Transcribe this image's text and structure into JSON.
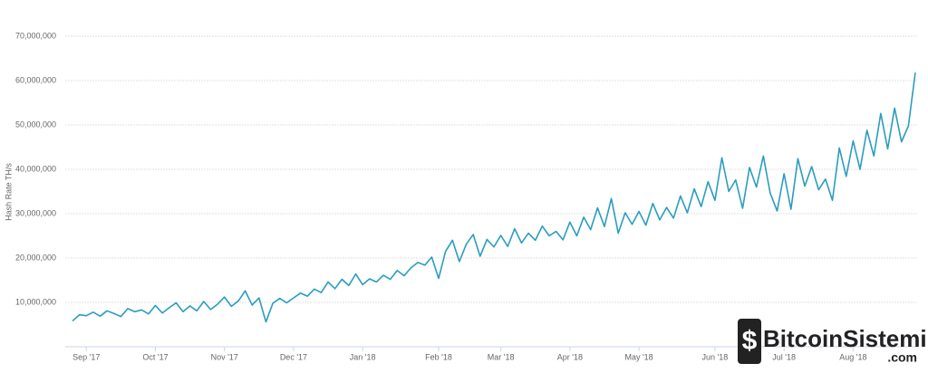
{
  "chart_data": {
    "type": "line",
    "y_label": "Hash Rate TH/s",
    "watermark": "BitcoinSistemi",
    "watermark_sub": ".com",
    "categories": [
      null,
      null,
      "Sep '17",
      null,
      null,
      null,
      null,
      null,
      null,
      null,
      null,
      null,
      "Oct '17",
      null,
      null,
      null,
      null,
      null,
      null,
      null,
      null,
      null,
      "Nov '17",
      null,
      null,
      null,
      null,
      null,
      null,
      null,
      null,
      null,
      "Dec '17",
      null,
      null,
      null,
      null,
      null,
      null,
      null,
      null,
      null,
      "Jan '18",
      null,
      null,
      null,
      null,
      null,
      null,
      null,
      null,
      null,
      null,
      "Feb '18",
      null,
      null,
      null,
      null,
      null,
      null,
      null,
      null,
      "Mar '18",
      null,
      null,
      null,
      null,
      null,
      null,
      null,
      null,
      null,
      "Apr '18",
      null,
      null,
      null,
      null,
      null,
      null,
      null,
      null,
      null,
      "May '18",
      null,
      null,
      null,
      null,
      null,
      null,
      null,
      null,
      null,
      null,
      "Jun '18",
      null,
      null,
      null,
      null,
      null,
      null,
      null,
      null,
      null,
      "Jul '18",
      null,
      null,
      null,
      null,
      null,
      null,
      null,
      null,
      null,
      "Aug '18",
      null,
      null,
      null,
      null,
      null,
      null,
      null,
      null,
      null
    ],
    "series": [
      {
        "name": "Hash Rate",
        "color": "#2a9dbf",
        "values": [
          5800000,
          7200000,
          7000000,
          7800000,
          6900000,
          8100000,
          7500000,
          6800000,
          8600000,
          7900000,
          8300000,
          7400000,
          9300000,
          7600000,
          8800000,
          9900000,
          7900000,
          9200000,
          8100000,
          10200000,
          8400000,
          9600000,
          11200000,
          9100000,
          10300000,
          12600000,
          9400000,
          11000000,
          5600000,
          9800000,
          10900000,
          9900000,
          11000000,
          12100000,
          11400000,
          13000000,
          12200000,
          14600000,
          13100000,
          15200000,
          13800000,
          16400000,
          14000000,
          15300000,
          14600000,
          16100000,
          15200000,
          17200000,
          16000000,
          17800000,
          19000000,
          18400000,
          20200000,
          15400000,
          21500000,
          24000000,
          19200000,
          23100000,
          25300000,
          20400000,
          24200000,
          22500000,
          25100000,
          22600000,
          26600000,
          23400000,
          25600000,
          24000000,
          27200000,
          25000000,
          26000000,
          24100000,
          28100000,
          25000000,
          29200000,
          26400000,
          31300000,
          27100000,
          33400000,
          25600000,
          30200000,
          27600000,
          30500000,
          27400000,
          32300000,
          28600000,
          31400000,
          29000000,
          34000000,
          30200000,
          35600000,
          31600000,
          37200000,
          33000000,
          42600000,
          35000000,
          37600000,
          31200000,
          40400000,
          36000000,
          43000000,
          34600000,
          30600000,
          39000000,
          31000000,
          42400000,
          36200000,
          40600000,
          35400000,
          37800000,
          33000000,
          44800000,
          38400000,
          46400000,
          40000000,
          48800000,
          43000000,
          52600000,
          44600000,
          53800000,
          46200000,
          49800000,
          61800000
        ]
      }
    ],
    "ylim": [
      0,
      70000000
    ],
    "yticks": [
      {
        "value": 10000000,
        "label": "10,000,000"
      },
      {
        "value": 20000000,
        "label": "20,000,000"
      },
      {
        "value": 30000000,
        "label": "30,000,000"
      },
      {
        "value": 40000000,
        "label": "40,000,000"
      },
      {
        "value": 50000000,
        "label": "50,000,000"
      },
      {
        "value": 60000000,
        "label": "60,000,000"
      },
      {
        "value": 70000000,
        "label": "70,000,000"
      }
    ],
    "grid": true
  }
}
